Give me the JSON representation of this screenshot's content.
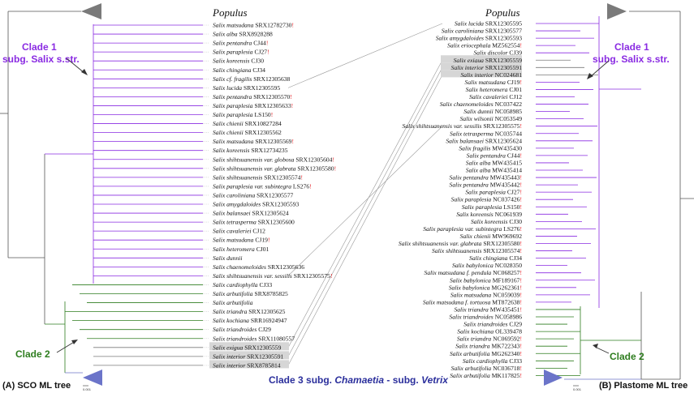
{
  "headers": {
    "left": "Populus",
    "right": "Populus"
  },
  "captions": {
    "left": "(A) SCO ML tree",
    "right": "(B) Plastome ML tree"
  },
  "clades": {
    "c1_left_a": "Clade 1",
    "c1_left_b": "subg. Salix s.str.",
    "c1_right_a": "Clade 1",
    "c1_right_b": "subg. Salix s.str.",
    "c2_left": "Clade 2",
    "c2_right": "Clade 2",
    "c3_a": "Clade 3  subg. ",
    "c3_b": "Chamaetia",
    "c3_c": " - subg. ",
    "c3_d": "Vetrix"
  },
  "scale": {
    "left": "0.001",
    "right": "0.001"
  },
  "colors": {
    "purple": "#8a2be2",
    "green": "#2e7d1f",
    "blue": "#6b74c9",
    "red": "#e0151b",
    "grey": "#7a7a7a"
  },
  "left_leaves": [
    {
      "sp": "Salix matsudana",
      "id": "SRX12782730",
      "red": false,
      "mark": true,
      "hl": false
    },
    {
      "sp": "Salix alba",
      "id": "SRX8928288",
      "red": false,
      "mark": false,
      "hl": false
    },
    {
      "sp": "Salix pentandra",
      "id": "CJ44",
      "red": false,
      "mark": true,
      "hl": false
    },
    {
      "sp": "Salix paraplesia",
      "id": "CJ27",
      "red": false,
      "mark": true,
      "hl": false
    },
    {
      "sp": "Salix koreensis",
      "id": "CJ30",
      "red": false,
      "mark": false,
      "hl": false
    },
    {
      "sp": "Salix chingiana",
      "id": "CJ34",
      "red": false,
      "mark": false,
      "hl": false
    },
    {
      "sp": "Salix cf. fragilis",
      "id": "SRX12305638",
      "red": false,
      "mark": false,
      "hl": false
    },
    {
      "sp": "Salix lucida",
      "id": "SRX12305595",
      "red": false,
      "mark": false,
      "hl": false
    },
    {
      "sp": "Salix pentandra",
      "id": "SRX12305570",
      "red": false,
      "mark": true,
      "hl": false
    },
    {
      "sp": "Salix paraplesia",
      "id": "SRX12305633",
      "red": false,
      "mark": true,
      "hl": false
    },
    {
      "sp": "Salix paraplesia",
      "id": "LS150",
      "red": false,
      "mark": true,
      "hl": false
    },
    {
      "sp": "Salix chienii",
      "id": "SRX10827284",
      "red": false,
      "mark": false,
      "hl": false
    },
    {
      "sp": "Salix chienii",
      "id": "SRX12305562",
      "red": false,
      "mark": false,
      "hl": false
    },
    {
      "sp": "Salix matsudana",
      "id": "SRX12305569",
      "red": false,
      "mark": true,
      "hl": false
    },
    {
      "sp": "Salix koreensis",
      "id": "SRX12734235",
      "red": false,
      "mark": false,
      "hl": false
    },
    {
      "sp": "Salix shihtsuanensis var. globosa",
      "id": "SRX12305604",
      "red": true,
      "mark": true,
      "hl": false
    },
    {
      "sp": "Salix shihtsuanensis var. glabrata",
      "id": "SRX12305580",
      "red": true,
      "mark": true,
      "hl": false
    },
    {
      "sp": "Salix shihtsuanensis",
      "id": "SRX12305574",
      "red": true,
      "mark": true,
      "hl": false
    },
    {
      "sp": "Salix paraplesia var. subintegra",
      "id": "LS276",
      "red": false,
      "mark": true,
      "hl": false
    },
    {
      "sp": "Salix caroliniana",
      "id": "SRX12305577",
      "red": false,
      "mark": false,
      "hl": false
    },
    {
      "sp": "Salix amygdaloides",
      "id": "SRX12305593",
      "red": false,
      "mark": false,
      "hl": false
    },
    {
      "sp": "Salix balansaei",
      "id": "SRX12305624",
      "red": false,
      "mark": false,
      "hl": false
    },
    {
      "sp": "Salix tetrasperma",
      "id": "SRX12305600",
      "red": false,
      "mark": false,
      "hl": false
    },
    {
      "sp": "Salix cavaleriei",
      "id": "CJ12",
      "red": false,
      "mark": false,
      "hl": false
    },
    {
      "sp": "Salix matsudana",
      "id": "CJ19",
      "red": false,
      "mark": true,
      "hl": false
    },
    {
      "sp": "Salix heteromera",
      "id": "CJ01",
      "red": false,
      "mark": false,
      "hl": false
    },
    {
      "sp": "Salix dunnii",
      "id": "",
      "red": false,
      "mark": false,
      "hl": false
    },
    {
      "sp": "Salix chaenomeloides",
      "id": "SRX12305636",
      "red": false,
      "mark": false,
      "hl": false
    },
    {
      "sp": "Salix shihtsuanensis var. sessilis",
      "id": "SRX12305575",
      "red": true,
      "mark": true,
      "hl": false
    },
    {
      "sp": "Salix cardiophylla",
      "id": "CJ33",
      "red": false,
      "mark": false,
      "hl": false
    },
    {
      "sp": "Salix arbutifolia",
      "id": "SRX8785825",
      "red": false,
      "mark": false,
      "hl": false
    },
    {
      "sp": "Salix arbutifolia",
      "id": "",
      "red": false,
      "mark": false,
      "hl": false
    },
    {
      "sp": "Salix triandra",
      "id": "SRX12305625",
      "red": false,
      "mark": false,
      "hl": false
    },
    {
      "sp": "Salix kochiana",
      "id": "SRR16924947",
      "red": true,
      "mark": false,
      "hl": false
    },
    {
      "sp": "Salix triandroides",
      "id": "CJ29",
      "red": false,
      "mark": false,
      "hl": false
    },
    {
      "sp": "Salix triandroides",
      "id": "SRX11080557",
      "red": false,
      "mark": false,
      "hl": false
    },
    {
      "sp": "Salix exigua",
      "id": "SRX12305559",
      "red": false,
      "mark": false,
      "hl": true
    },
    {
      "sp": "Salix interior",
      "id": "SRX12305591",
      "red": false,
      "mark": false,
      "hl": true
    },
    {
      "sp": "Salix interior",
      "id": "SRX8785814",
      "red": false,
      "mark": false,
      "hl": true
    }
  ],
  "right_leaves": [
    {
      "sp": "Salix lucida",
      "id": "SRX12305595",
      "red": false,
      "mark": false,
      "hl": false
    },
    {
      "sp": "Salix caroliniana",
      "id": "SRX12305577",
      "red": false,
      "mark": false,
      "hl": false
    },
    {
      "sp": "Salix amygdaloides",
      "id": "SRX12305593",
      "red": false,
      "mark": false,
      "hl": false
    },
    {
      "sp": "Salix eriocephala",
      "id": "MZ562554",
      "red": true,
      "mark": true,
      "hl": false
    },
    {
      "sp": "Salix discolor",
      "id": "CJ39",
      "red": true,
      "mark": false,
      "hl": false
    },
    {
      "sp": "Salix exigua",
      "id": "SRX12305559",
      "red": false,
      "mark": false,
      "hl": true
    },
    {
      "sp": "Salix interior",
      "id": "SRX12305591",
      "red": false,
      "mark": false,
      "hl": true
    },
    {
      "sp": "Salix interior",
      "id": "NC024681",
      "red": false,
      "mark": false,
      "hl": true
    },
    {
      "sp": "Salix matsudana",
      "id": "CJ19",
      "red": false,
      "mark": true,
      "hl": false
    },
    {
      "sp": "Salix heteromera",
      "id": "CJ01",
      "red": false,
      "mark": false,
      "hl": false
    },
    {
      "sp": "Salix cavaleriei",
      "id": "CJ12",
      "red": false,
      "mark": false,
      "hl": false
    },
    {
      "sp": "Salix chaenomeloides",
      "id": "NC037422",
      "red": false,
      "mark": false,
      "hl": false
    },
    {
      "sp": "Salix dunnii",
      "id": "NC058985",
      "red": false,
      "mark": false,
      "hl": false
    },
    {
      "sp": "Salix wilsonii",
      "id": "NC053549",
      "red": false,
      "mark": false,
      "hl": false
    },
    {
      "sp": "Salix shihtsuanensis var. sessilis",
      "id": "SRX12305575",
      "red": true,
      "mark": true,
      "hl": false
    },
    {
      "sp": "Salix tetrasperma",
      "id": "NC035744",
      "red": false,
      "mark": false,
      "hl": false
    },
    {
      "sp": "Salix balansaei",
      "id": "SRX12305624",
      "red": false,
      "mark": false,
      "hl": false
    },
    {
      "sp": "Salix fragilis",
      "id": "MW435430",
      "red": false,
      "mark": false,
      "hl": false
    },
    {
      "sp": "Salix pentandra",
      "id": "CJ44",
      "red": false,
      "mark": true,
      "hl": false
    },
    {
      "sp": "Salix alba",
      "id": "MW435415",
      "red": false,
      "mark": false,
      "hl": false
    },
    {
      "sp": "Salix alba",
      "id": "MW435414",
      "red": false,
      "mark": false,
      "hl": false
    },
    {
      "sp": "Salix pentandra",
      "id": "MW435443",
      "red": false,
      "mark": true,
      "hl": false
    },
    {
      "sp": "Salix pentandra",
      "id": "MW435442",
      "red": false,
      "mark": true,
      "hl": false
    },
    {
      "sp": "Salix paraplesia",
      "id": "CJ27",
      "red": false,
      "mark": true,
      "hl": false
    },
    {
      "sp": "Salix paraplesia",
      "id": "NC037426",
      "red": false,
      "mark": true,
      "hl": false
    },
    {
      "sp": "Salix paraplesia",
      "id": "LS150",
      "red": false,
      "mark": true,
      "hl": false
    },
    {
      "sp": "Salix koreensis",
      "id": "NC061939",
      "red": false,
      "mark": false,
      "hl": false
    },
    {
      "sp": "Salix koreensis",
      "id": "CJ30",
      "red": false,
      "mark": false,
      "hl": false
    },
    {
      "sp": "Salix paraplesia var. subintegra",
      "id": "LS276",
      "red": false,
      "mark": true,
      "hl": false
    },
    {
      "sp": "Salix chienii",
      "id": "MW969692",
      "red": false,
      "mark": false,
      "hl": false
    },
    {
      "sp": "Salix shihtsuanensis var. glabrata",
      "id": "SRX12305580",
      "red": true,
      "mark": true,
      "hl": false
    },
    {
      "sp": "Salix shihtsuanensis",
      "id": "SRX12305574",
      "red": true,
      "mark": true,
      "hl": false
    },
    {
      "sp": "Salix chingiana",
      "id": "CJ34",
      "red": false,
      "mark": false,
      "hl": false
    },
    {
      "sp": "Salix babylonica",
      "id": "NC028350",
      "red": false,
      "mark": false,
      "hl": false
    },
    {
      "sp": "Salix matsudana f. pendula",
      "id": "NC068257",
      "red": false,
      "mark": true,
      "hl": false
    },
    {
      "sp": "Salix babylonica",
      "id": "MF189167",
      "red": false,
      "mark": true,
      "hl": false
    },
    {
      "sp": "Salix babylonica",
      "id": "MG262361",
      "red": false,
      "mark": true,
      "hl": false
    },
    {
      "sp": "Salix matsudana",
      "id": "NC059039",
      "red": false,
      "mark": true,
      "hl": false
    },
    {
      "sp": "Salix matsudana f. tortuosa",
      "id": "MT872638",
      "red": false,
      "mark": true,
      "hl": false
    },
    {
      "sp": "Salix triandra",
      "id": "MW435451",
      "red": false,
      "mark": true,
      "hl": false
    },
    {
      "sp": "Salix triandroides",
      "id": "NC058986",
      "red": false,
      "mark": false,
      "hl": false
    },
    {
      "sp": "Salix triandroides",
      "id": "CJ29",
      "red": false,
      "mark": false,
      "hl": false
    },
    {
      "sp": "Salix kochiana",
      "id": "OL339478",
      "red": true,
      "mark": false,
      "hl": false
    },
    {
      "sp": "Salix triandra",
      "id": "NC069592",
      "red": false,
      "mark": true,
      "hl": false
    },
    {
      "sp": "Salix triandra",
      "id": "MK722343",
      "red": false,
      "mark": true,
      "hl": false
    },
    {
      "sp": "Salix arbutifolia",
      "id": "MG262340",
      "red": false,
      "mark": true,
      "hl": false
    },
    {
      "sp": "Salix cardiophylla",
      "id": "CJ33",
      "red": false,
      "mark": false,
      "hl": false
    },
    {
      "sp": "Salix arbutifolia",
      "id": "NC036718",
      "red": false,
      "mark": true,
      "hl": false
    },
    {
      "sp": "Salix arbutifolia",
      "id": "MK117825",
      "red": false,
      "mark": true,
      "hl": false
    }
  ]
}
